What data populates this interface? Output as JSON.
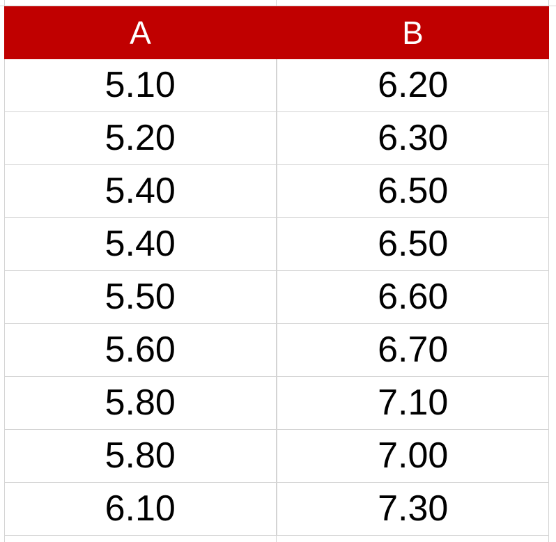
{
  "table": {
    "headers": [
      "A",
      "B"
    ],
    "rows": [
      [
        "5.10",
        "6.20"
      ],
      [
        "5.20",
        "6.30"
      ],
      [
        "5.40",
        "6.50"
      ],
      [
        "5.40",
        "6.50"
      ],
      [
        "5.50",
        "6.60"
      ],
      [
        "5.60",
        "6.70"
      ],
      [
        "5.80",
        "7.10"
      ],
      [
        "5.80",
        "7.00"
      ],
      [
        "6.10",
        "7.30"
      ]
    ]
  },
  "colors": {
    "header_background": "#c00000",
    "header_text": "#ffffff",
    "cell_text": "#000000",
    "gridline": "#d4d4d4"
  }
}
